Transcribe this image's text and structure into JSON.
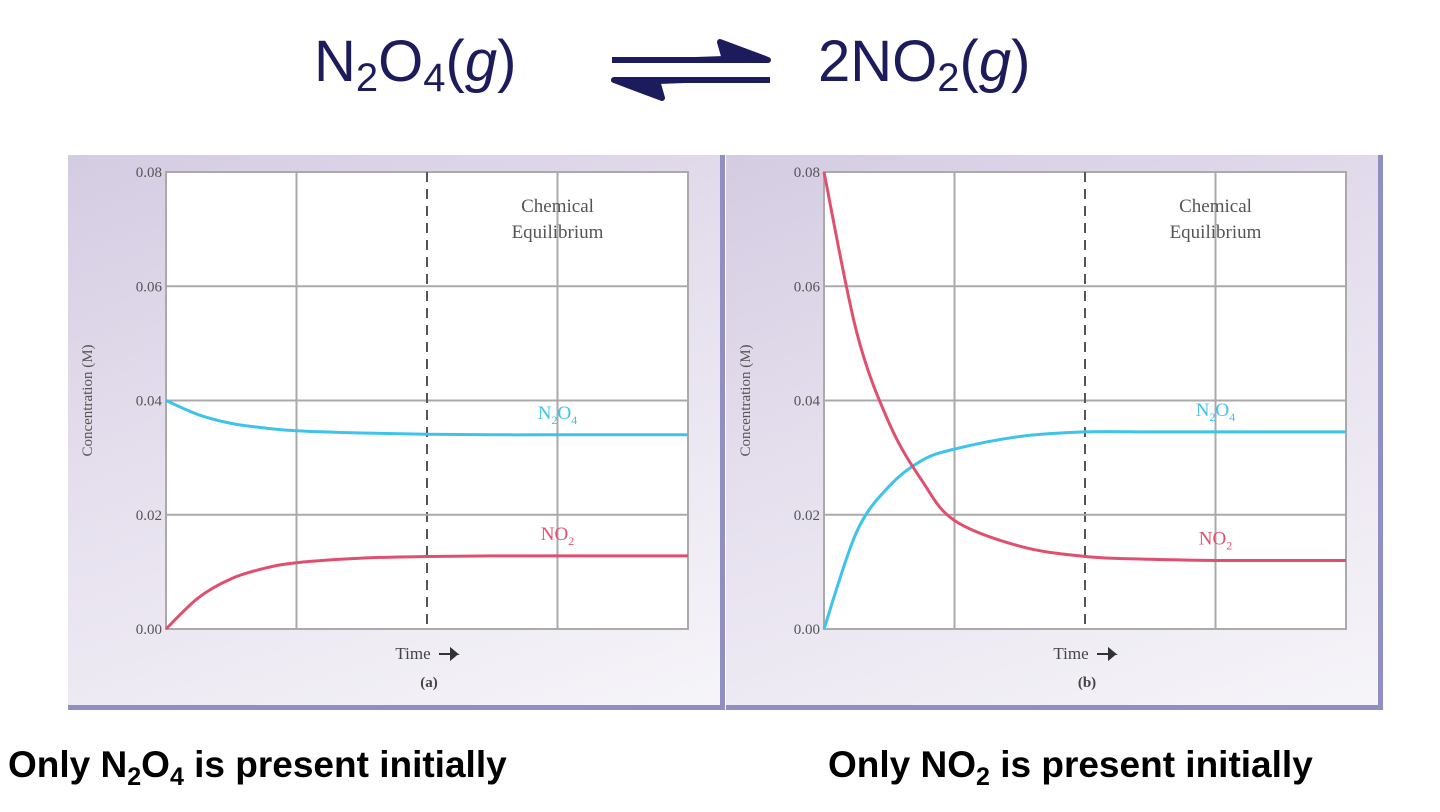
{
  "header": {
    "left": {
      "a": "N",
      "s1": "2",
      "b": "O",
      "s2": "4",
      "c": "(",
      "d": "g",
      "e": ")"
    },
    "right": {
      "a": "2NO",
      "s1": "2",
      "c": "(",
      "d": "g",
      "e": ")"
    },
    "arrow_icon": "equilibrium-harpoons-icon"
  },
  "captions": {
    "left": {
      "a": "Only N",
      "s1": "2",
      "b": "O",
      "s2": "4",
      "c": " is present initially"
    },
    "right": {
      "a": "Only NO",
      "s1": "2",
      "c": " is present initially"
    }
  },
  "colors": {
    "N2O4": "#3ec3ea",
    "NO2": "#e0506e",
    "title": "#1c1c5c"
  },
  "chart_data": [
    {
      "type": "line",
      "panel_label": "(a)",
      "xlabel": "Time",
      "ylabel": "Concentration (M)",
      "ylim": [
        0,
        0.08
      ],
      "yticks": [
        "0.00",
        "0.02",
        "0.04",
        "0.06",
        "0.08"
      ],
      "grid": true,
      "annotation": {
        "line1": "Chemical",
        "line2": "Equilibrium"
      },
      "x": [
        0,
        0.25,
        0.5,
        0.75,
        1,
        1.5,
        2,
        2.5,
        3,
        3.5,
        4
      ],
      "series": [
        {
          "name": "N2O4",
          "label": {
            "a": "N",
            "s1": "2",
            "b": "O",
            "s2": "4"
          },
          "color": "#3ec3ea",
          "values": [
            0.04,
            0.0375,
            0.036,
            0.0352,
            0.0347,
            0.0343,
            0.0341,
            0.034,
            0.034,
            0.034,
            0.034
          ]
        },
        {
          "name": "NO2",
          "label": {
            "a": "NO",
            "s1": "2"
          },
          "color": "#e0506e",
          "values": [
            0,
            0.0055,
            0.0088,
            0.0106,
            0.0116,
            0.0124,
            0.0127,
            0.0128,
            0.0128,
            0.0128,
            0.0128
          ]
        }
      ]
    },
    {
      "type": "line",
      "panel_label": "(b)",
      "xlabel": "Time",
      "ylabel": "Concentration (M)",
      "ylim": [
        0,
        0.08
      ],
      "yticks": [
        "0.00",
        "0.02",
        "0.04",
        "0.06",
        "0.08"
      ],
      "grid": true,
      "annotation": {
        "line1": "Chemical",
        "line2": "Equilibrium"
      },
      "x": [
        0,
        0.25,
        0.5,
        0.75,
        1,
        1.5,
        2,
        2.5,
        3,
        3.5,
        4
      ],
      "series": [
        {
          "name": "N2O4",
          "label": {
            "a": "N",
            "s1": "2",
            "b": "O",
            "s2": "4"
          },
          "color": "#3ec3ea",
          "values": [
            0,
            0.017,
            0.025,
            0.0295,
            0.0315,
            0.0337,
            0.0345,
            0.0345,
            0.0345,
            0.0345,
            0.0345
          ]
        },
        {
          "name": "NO2",
          "label": {
            "a": "NO",
            "s1": "2"
          },
          "color": "#e0506e",
          "values": [
            0.08,
            0.052,
            0.036,
            0.026,
            0.019,
            0.0145,
            0.0127,
            0.0122,
            0.012,
            0.012,
            0.012
          ]
        }
      ]
    }
  ]
}
